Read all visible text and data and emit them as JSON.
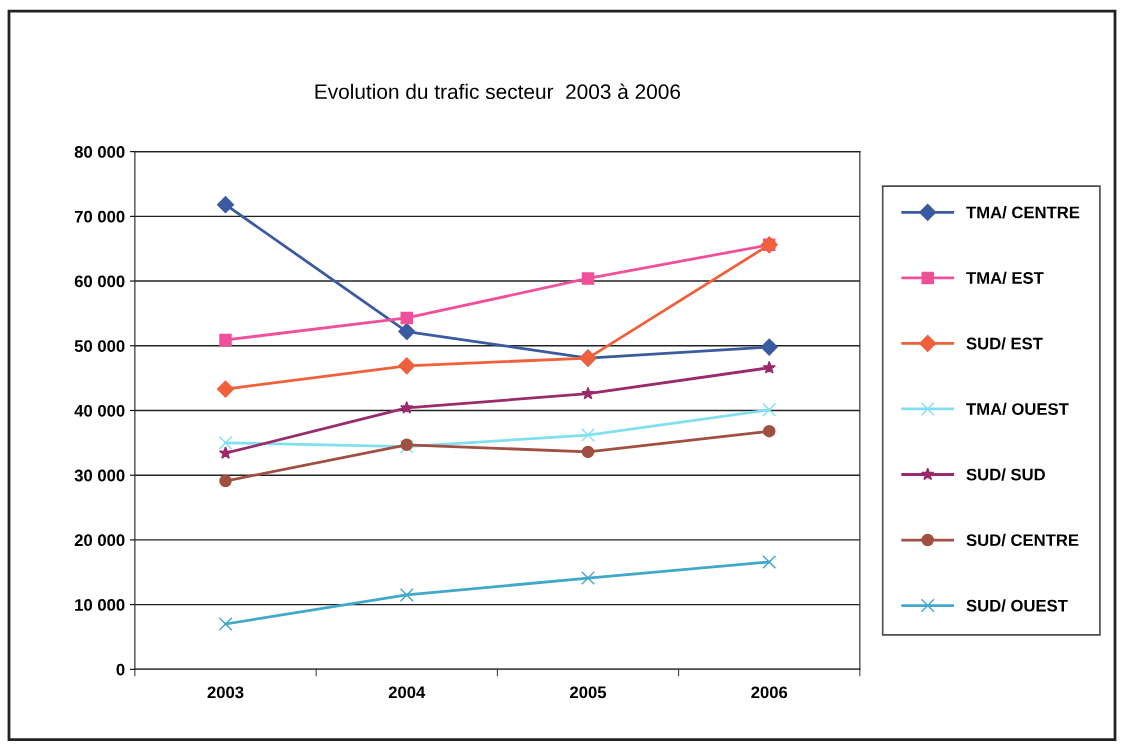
{
  "chart_data": {
    "type": "line",
    "title": "Evolution du trafic secteur  2003 à 2006",
    "categories": [
      "2003",
      "2004",
      "2005",
      "2006"
    ],
    "series": [
      {
        "name": "TMA/ CENTRE",
        "color": "#3a5ba0",
        "marker": "diamond",
        "values": [
          71800,
          52200,
          48100,
          49800
        ]
      },
      {
        "name": "TMA/ EST",
        "color": "#f0509a",
        "marker": "square",
        "values": [
          50900,
          54300,
          60400,
          65600
        ]
      },
      {
        "name": "SUD/ EST",
        "color": "#f0603a",
        "marker": "diamond",
        "values": [
          43300,
          46900,
          48100,
          65600
        ]
      },
      {
        "name": "TMA/ OUEST",
        "color": "#80e0f0",
        "marker": "cross",
        "values": [
          35000,
          34400,
          36200,
          40100
        ]
      },
      {
        "name": "SUD/ SUD",
        "color": "#9a2a6a",
        "marker": "star",
        "values": [
          33400,
          40400,
          42600,
          46600
        ]
      },
      {
        "name": "SUD/ CENTRE",
        "color": "#a05040",
        "marker": "circle",
        "values": [
          29100,
          34700,
          33600,
          36800
        ]
      },
      {
        "name": "SUD/ OUEST",
        "color": "#40a8c8",
        "marker": "cross",
        "values": [
          7000,
          11500,
          14100,
          16600
        ]
      }
    ],
    "ylim": [
      0,
      80000
    ],
    "yticks": [
      0,
      {
        "value": 10000,
        "label": "10 000"
      },
      {
        "value": 20000,
        "label": "20 000"
      },
      {
        "value": 30000,
        "label": "30 000"
      },
      {
        "value": 40000,
        "label": "40 000"
      },
      {
        "value": 50000,
        "label": "50 000"
      },
      {
        "value": 60000,
        "label": "60 000"
      },
      {
        "value": 70000,
        "label": "70 000"
      },
      {
        "value": 80000,
        "label": "80 000"
      }
    ],
    "grid": "y",
    "legend": "right"
  }
}
